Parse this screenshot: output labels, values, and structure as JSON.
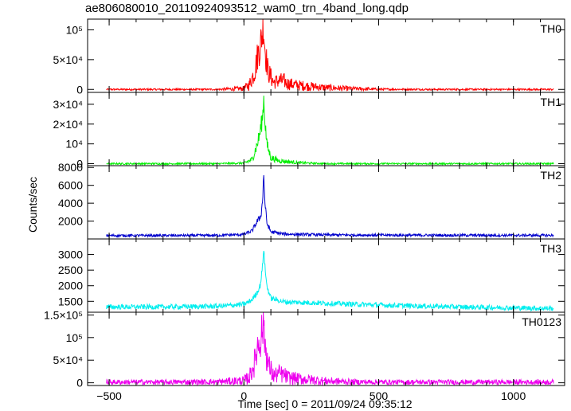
{
  "title": "ae806080010_20110924093512_wam0_trn_4band_long.qdp",
  "chart_data": {
    "type": "line",
    "xlabel": "Time [sec] 0 = 2011/09/24 09:35:12",
    "ylabel": "Counts/sec",
    "xlim": [
      -580,
      1190
    ],
    "x_ticks": [
      {
        "value": -500,
        "label": "−500"
      },
      {
        "value": 0,
        "label": "0"
      },
      {
        "value": 500,
        "label": "500"
      },
      {
        "value": 1000,
        "label": "1000"
      }
    ],
    "panels": [
      {
        "name": "TH0",
        "color": "#ff0000",
        "ylim": [
          -5000,
          118000
        ],
        "y_ticks": [
          {
            "value": 0,
            "label": "0"
          },
          {
            "value": 50000,
            "label": "5×10⁴"
          },
          {
            "value": 100000,
            "label": "10⁵"
          }
        ],
        "points": [
          [
            -510,
            0
          ],
          [
            -300,
            0
          ],
          [
            -100,
            0
          ],
          [
            0,
            1500
          ],
          [
            20,
            8000
          ],
          [
            40,
            30000
          ],
          [
            50,
            55000
          ],
          [
            55,
            65000
          ],
          [
            60,
            70000
          ],
          [
            65,
            88000
          ],
          [
            70,
            95000
          ],
          [
            72,
            112000
          ],
          [
            75,
            90000
          ],
          [
            80,
            60000
          ],
          [
            90,
            30000
          ],
          [
            110,
            12000
          ],
          [
            130,
            15000
          ],
          [
            150,
            14000
          ],
          [
            160,
            10000
          ],
          [
            200,
            7000
          ],
          [
            300,
            3000
          ],
          [
            400,
            1200
          ],
          [
            500,
            300
          ],
          [
            700,
            0
          ],
          [
            1150,
            0
          ]
        ]
      },
      {
        "name": "TH1",
        "color": "#00ee00",
        "ylim": [
          -1000,
          36000
        ],
        "y_ticks": [
          {
            "value": 0,
            "label": "0"
          },
          {
            "value": 10000,
            "label": "10⁴"
          },
          {
            "value": 20000,
            "label": "2×10⁴"
          },
          {
            "value": 30000,
            "label": "3×10⁴"
          }
        ],
        "points": [
          [
            -510,
            0
          ],
          [
            -100,
            0
          ],
          [
            0,
            300
          ],
          [
            30,
            2000
          ],
          [
            50,
            10000
          ],
          [
            60,
            16000
          ],
          [
            65,
            20000
          ],
          [
            70,
            24000
          ],
          [
            73,
            34000
          ],
          [
            77,
            24000
          ],
          [
            85,
            10000
          ],
          [
            100,
            3000
          ],
          [
            130,
            1500
          ],
          [
            200,
            500
          ],
          [
            300,
            0
          ],
          [
            1150,
            0
          ]
        ]
      },
      {
        "name": "TH2",
        "color": "#0000cc",
        "ylim": [
          0,
          8200
        ],
        "y_ticks": [
          {
            "value": 2000,
            "label": "2000"
          },
          {
            "value": 4000,
            "label": "4000"
          },
          {
            "value": 6000,
            "label": "6000"
          },
          {
            "value": 8000,
            "label": "8000"
          }
        ],
        "points": [
          [
            -510,
            380
          ],
          [
            -300,
            380
          ],
          [
            -100,
            400
          ],
          [
            0,
            500
          ],
          [
            30,
            900
          ],
          [
            50,
            2000
          ],
          [
            60,
            2400
          ],
          [
            65,
            3000
          ],
          [
            70,
            4500
          ],
          [
            73,
            7500
          ],
          [
            77,
            4500
          ],
          [
            85,
            1800
          ],
          [
            100,
            800
          ],
          [
            150,
            550
          ],
          [
            300,
            450
          ],
          [
            600,
            420
          ],
          [
            1150,
            400
          ]
        ]
      },
      {
        "name": "TH3",
        "color": "#00eeee",
        "ylim": [
          1150,
          3500
        ],
        "y_ticks": [
          {
            "value": 1500,
            "label": "1500"
          },
          {
            "value": 2000,
            "label": "2000"
          },
          {
            "value": 2500,
            "label": "2500"
          },
          {
            "value": 3000,
            "label": "3000"
          }
        ],
        "points": [
          [
            -510,
            1320
          ],
          [
            -300,
            1320
          ],
          [
            -100,
            1340
          ],
          [
            0,
            1400
          ],
          [
            30,
            1550
          ],
          [
            50,
            1800
          ],
          [
            60,
            2000
          ],
          [
            65,
            2300
          ],
          [
            70,
            2700
          ],
          [
            73,
            3250
          ],
          [
            78,
            2600
          ],
          [
            85,
            2000
          ],
          [
            100,
            1600
          ],
          [
            150,
            1480
          ],
          [
            300,
            1440
          ],
          [
            500,
            1380
          ],
          [
            800,
            1320
          ],
          [
            1150,
            1270
          ]
        ]
      },
      {
        "name": "TH0123",
        "color": "#ee00ee",
        "ylim": [
          -6000,
          156000
        ],
        "y_ticks": [
          {
            "value": 0,
            "label": "0"
          },
          {
            "value": 50000,
            "label": "5×10⁴"
          },
          {
            "value": 100000,
            "label": "10⁵"
          },
          {
            "value": 150000,
            "label": "1.5×10⁵"
          }
        ],
        "points": [
          [
            -510,
            1500
          ],
          [
            -300,
            1500
          ],
          [
            -100,
            2000
          ],
          [
            0,
            5000
          ],
          [
            20,
            12000
          ],
          [
            40,
            45000
          ],
          [
            50,
            80000
          ],
          [
            55,
            90000
          ],
          [
            60,
            95000
          ],
          [
            65,
            110000
          ],
          [
            70,
            120000
          ],
          [
            72,
            145000
          ],
          [
            75,
            115000
          ],
          [
            80,
            80000
          ],
          [
            90,
            40000
          ],
          [
            110,
            15000
          ],
          [
            130,
            20000
          ],
          [
            150,
            17000
          ],
          [
            160,
            12000
          ],
          [
            200,
            9000
          ],
          [
            300,
            4000
          ],
          [
            400,
            2000
          ],
          [
            500,
            1500
          ],
          [
            700,
            1500
          ],
          [
            1150,
            1500
          ]
        ]
      }
    ]
  }
}
